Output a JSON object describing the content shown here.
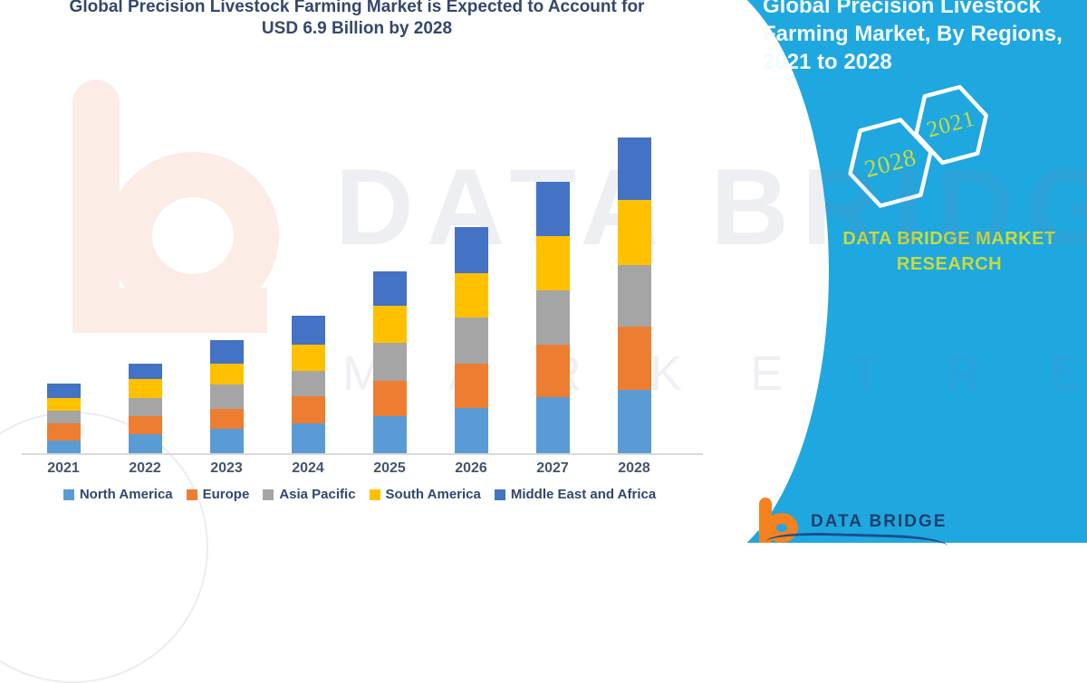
{
  "header": {
    "title_line1": "Global Precision Livestock Farming Market is Expected to Account for",
    "title_line2": "USD 6.9 Billion by 2028",
    "title_color": "#33486B"
  },
  "side_panel": {
    "bg_color": "#1FA7E0",
    "title": "Global Precision Livestock Farming Market, By Regions, 2021 to 2028",
    "hexagons": [
      {
        "label": "2028"
      },
      {
        "label": "2021"
      }
    ],
    "brand_text": "DATA BRIDGE MARKET RESEARCH",
    "accent_text_color": "#C9DB39"
  },
  "watermark": {
    "line1": "DATA BRIDGE",
    "line2": "M A R K E T   R E S E A R C H"
  },
  "footer_logo": {
    "brand_name": "DATA BRIDGE",
    "b_color": "#F58220",
    "name_color": "#1C3F6B"
  },
  "chart_data": {
    "type": "bar",
    "stacked": true,
    "title": "Global Precision Livestock Farming Market, By Regions, 2021 to 2028",
    "unit": "USD Billion",
    "categories": [
      "2021",
      "2022",
      "2023",
      "2024",
      "2025",
      "2026",
      "2027",
      "2028"
    ],
    "series": [
      {
        "name": "North America",
        "color": "#5B9BD5",
        "values": [
          0.28,
          0.42,
          0.53,
          0.65,
          0.81,
          0.99,
          1.23,
          1.38
        ]
      },
      {
        "name": "Europe",
        "color": "#ED7D31",
        "values": [
          0.38,
          0.4,
          0.43,
          0.59,
          0.77,
          0.97,
          1.15,
          1.38
        ]
      },
      {
        "name": "Asia Pacific",
        "color": "#A5A5A5",
        "values": [
          0.28,
          0.4,
          0.53,
          0.55,
          0.83,
          1.01,
          1.19,
          1.34
        ]
      },
      {
        "name": "South America",
        "color": "#FFC000",
        "values": [
          0.28,
          0.42,
          0.45,
          0.57,
          0.81,
          0.97,
          1.19,
          1.42
        ]
      },
      {
        "name": "Middle East and Africa",
        "color": "#4472C4",
        "values": [
          0.32,
          0.34,
          0.51,
          0.63,
          0.75,
          1.01,
          1.19,
          1.36
        ]
      }
    ],
    "totals_estimated": [
      1.54,
      1.98,
      2.45,
      2.99,
      3.97,
      4.95,
      5.95,
      6.88
    ],
    "highlight_value": "USD 6.9 Billion by 2028",
    "ylim": [
      0,
      6.9
    ],
    "grid": false,
    "y_axis_shown": false,
    "legend_position": "bottom",
    "note": "Segment values estimated from stacked bar heights; 2028 total stated as USD 6.9 Billion"
  }
}
